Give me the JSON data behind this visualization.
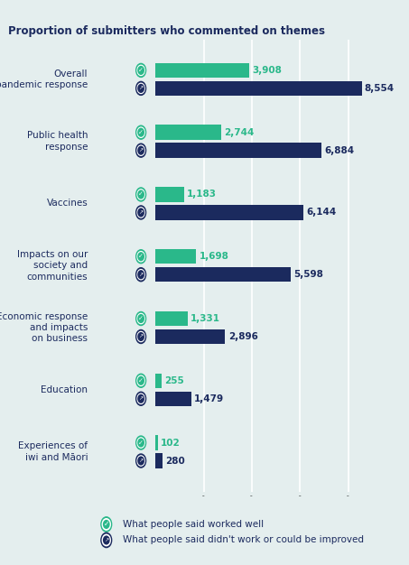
{
  "title": "Proportion of submitters who commented on themes",
  "categories": [
    "Overall\npandemic response",
    "Public health\nresponse",
    "Vaccines",
    "Impacts on our\nsociety and\ncommunities",
    "Economic response\nand impacts\non business",
    "Education",
    "Experiences of\niwi and Māori"
  ],
  "worked_well": [
    3908,
    2744,
    1183,
    1698,
    1331,
    255,
    102
  ],
  "didnt_work": [
    8554,
    6884,
    6144,
    5598,
    2896,
    1479,
    280
  ],
  "worked_well_color": "#2ab88a",
  "didnt_work_color": "#1b2a5e",
  "background_color": "#e4eeee",
  "text_color": "#1b2a5e",
  "bar_height": 0.28,
  "legend_worked_well": "What people said worked well",
  "legend_didnt_work": "What people said didn't work or could be improved",
  "xlim_max": 9500,
  "grid_ticks": [
    2000,
    4000,
    6000,
    8000
  ]
}
